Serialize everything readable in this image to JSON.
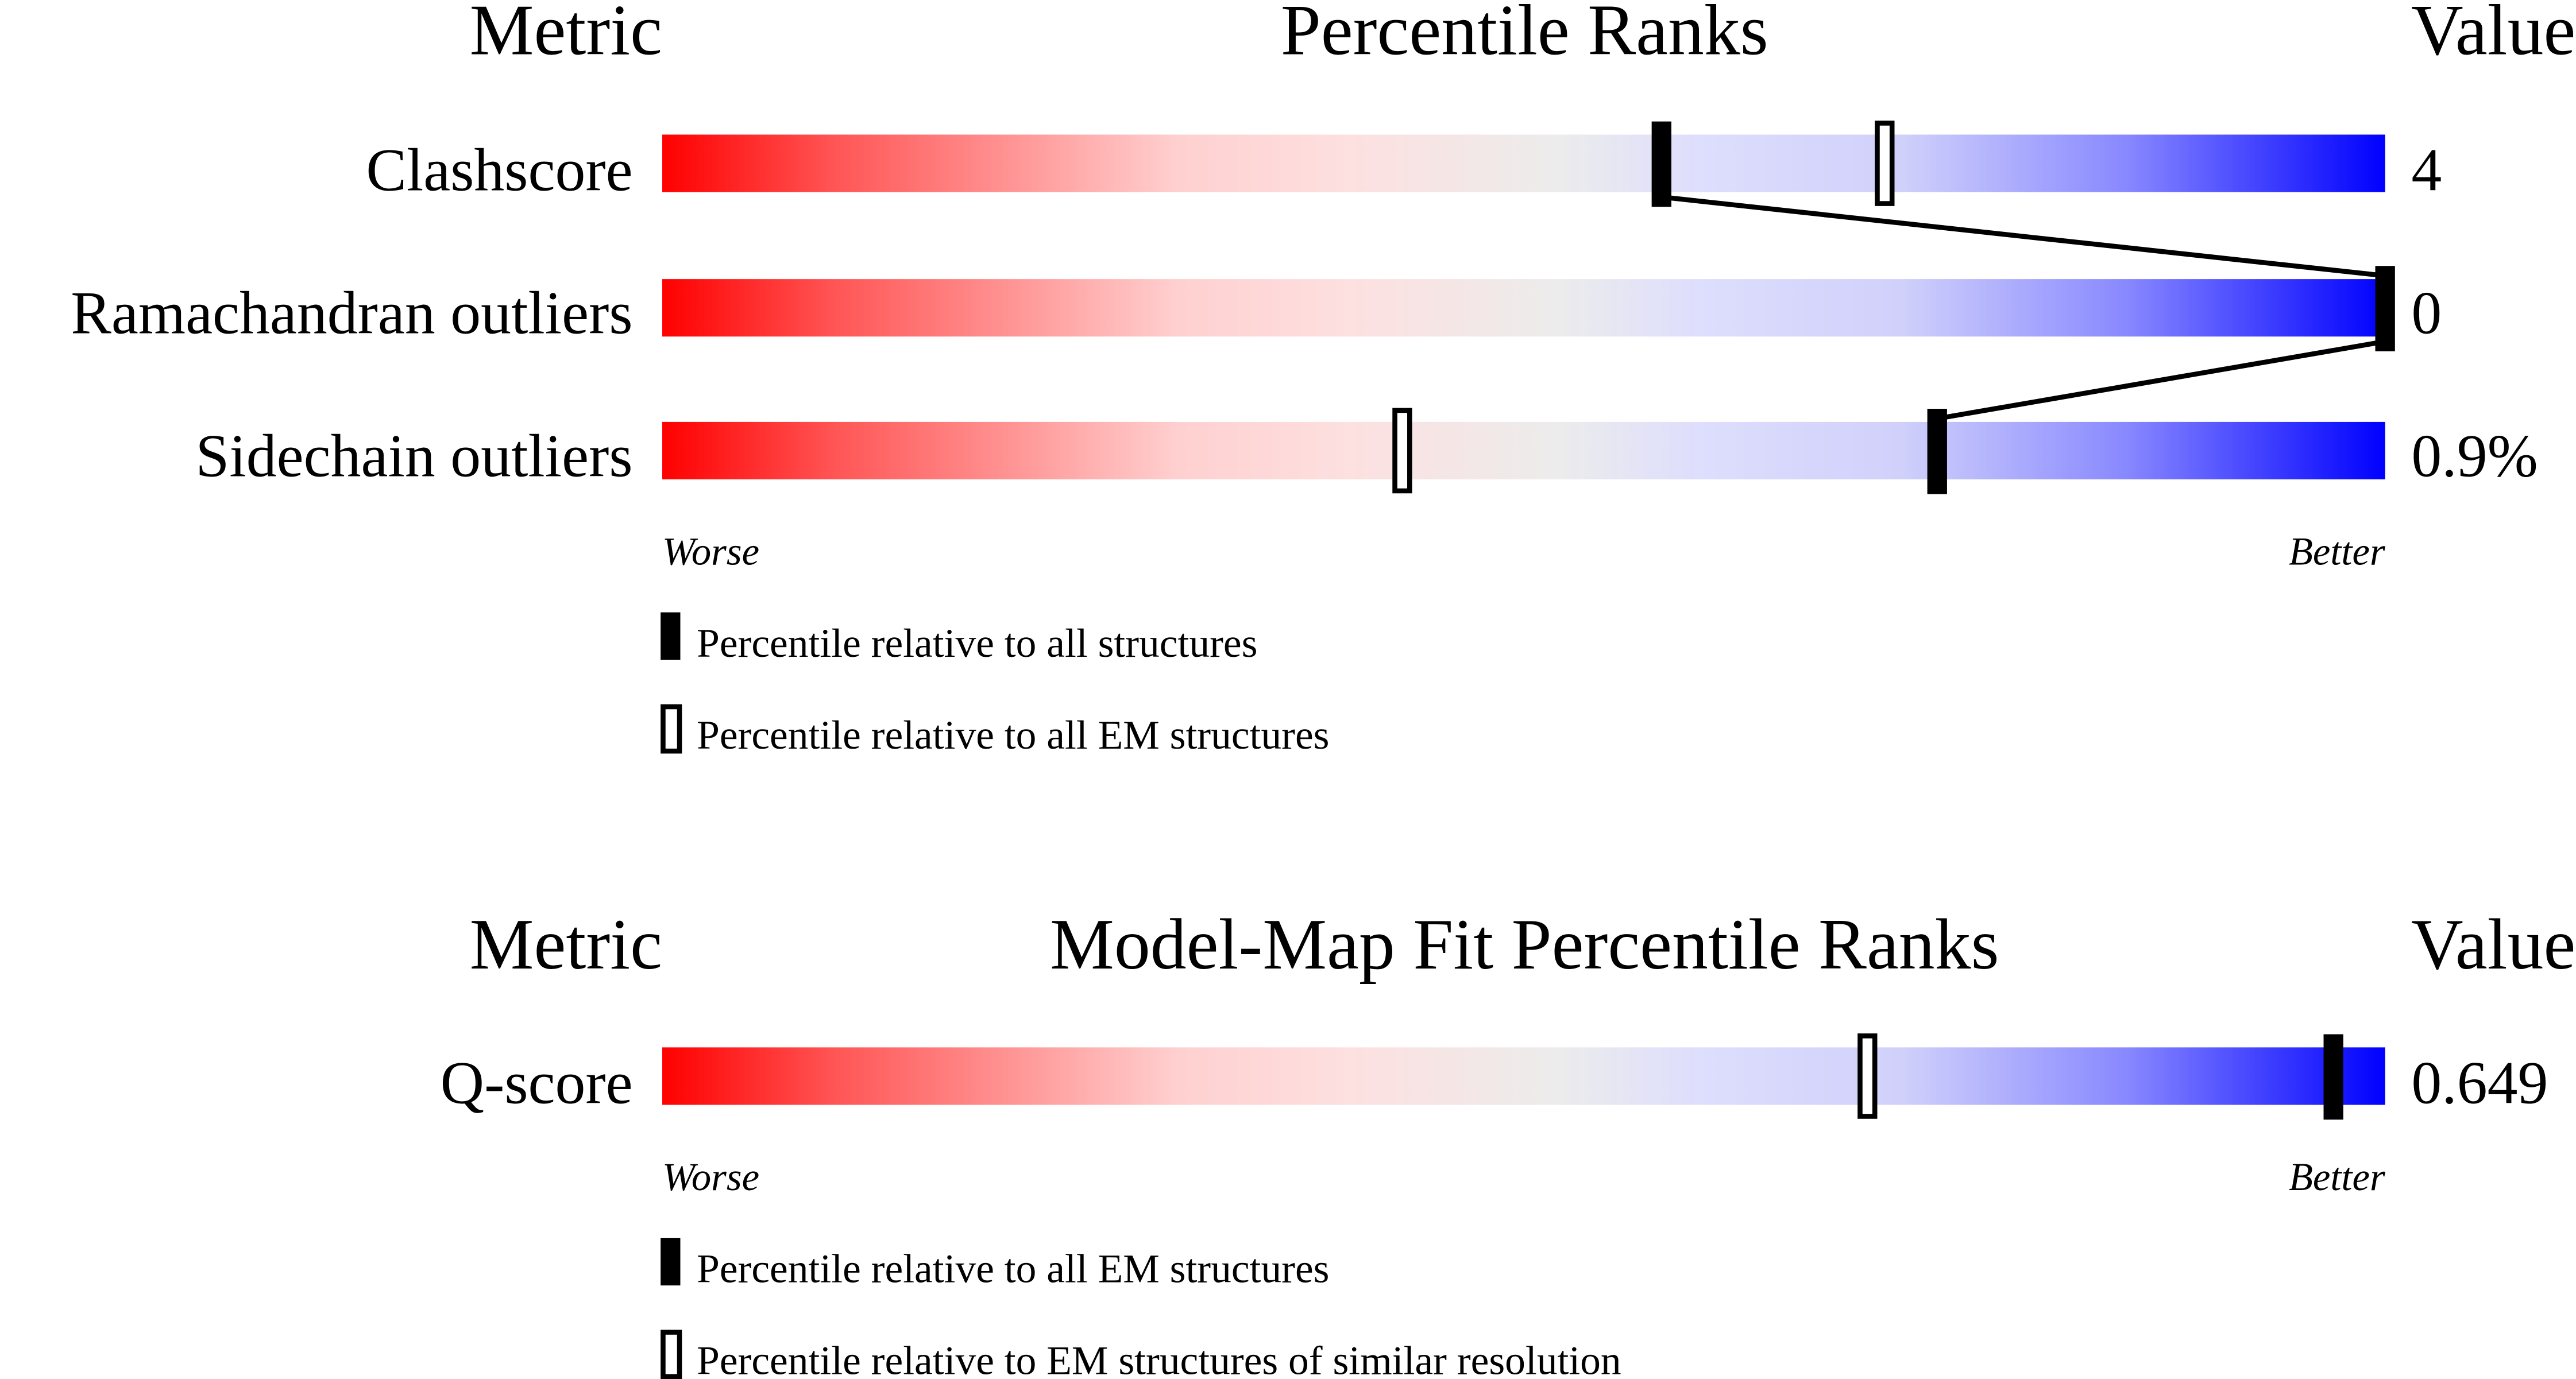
{
  "chart_data": [
    {
      "type": "percentile-slider",
      "headers": {
        "metric": "Metric",
        "title": "Percentile Ranks",
        "value": "Value"
      },
      "range": [
        0,
        100
      ],
      "gradient_colors": [
        "#ff0000",
        "#ffdddd",
        "#eeeeee",
        "#ddddff",
        "#0000ff"
      ],
      "rows": [
        {
          "metric": "Clashscore",
          "value": "4",
          "percentile_all": 58,
          "percentile_em": 71
        },
        {
          "metric": "Ramachandran outliers",
          "value": "0",
          "percentile_all": 100,
          "percentile_em": 100
        },
        {
          "metric": "Sidechain outliers",
          "value": "0.9%",
          "percentile_all": 74,
          "percentile_em": 43
        }
      ],
      "worse_label": "Worse",
      "better_label": "Better",
      "legend": {
        "filled": "Percentile relative to all structures",
        "open": "Percentile relative to all EM structures"
      }
    },
    {
      "type": "percentile-slider",
      "headers": {
        "metric": "Metric",
        "title": "Model-Map Fit Percentile Ranks",
        "value": "Value"
      },
      "range": [
        0,
        100
      ],
      "rows": [
        {
          "metric": "Q-score",
          "value": "0.649",
          "percentile_all": 97,
          "percentile_em": 70
        }
      ],
      "worse_label": "Worse",
      "better_label": "Better",
      "legend": {
        "filled": "Percentile relative to all EM structures",
        "open": "Percentile relative to EM structures of similar resolution"
      }
    }
  ]
}
